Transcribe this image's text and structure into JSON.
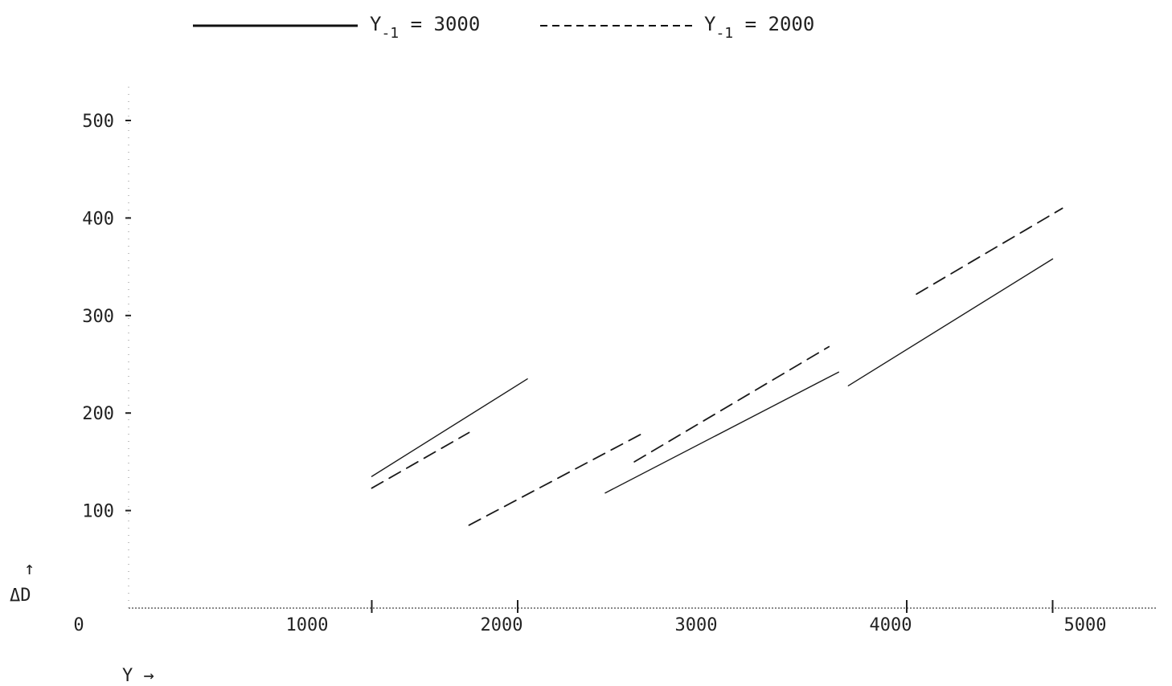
{
  "chart_data": {
    "type": "line",
    "title": "",
    "xlabel": "Y →",
    "ylabel": "↑ ΔD",
    "xlim": [
      0,
      5000
    ],
    "ylim": [
      0,
      500
    ],
    "x_ticks": [
      "0",
      "1000",
      "2000",
      "3000",
      "4000",
      "5000"
    ],
    "y_ticks": [
      "100",
      "200",
      "300",
      "400",
      "500"
    ],
    "grid": false,
    "legend_position": "top",
    "legend": [
      {
        "prefix": "Y",
        "sub": "-1",
        "suffix": " = 3000",
        "style": "solid"
      },
      {
        "prefix": "Y",
        "sub": "-1",
        "suffix": " = 2000",
        "style": "dashed"
      }
    ],
    "series": [
      {
        "name": "Y-1 = 3000",
        "style": "solid",
        "segments": [
          [
            [
              1250,
              135
            ],
            [
              2050,
              235
            ]
          ],
          [
            [
              2450,
              118
            ],
            [
              3650,
              242
            ]
          ],
          [
            [
              3700,
              228
            ],
            [
              4750,
              358
            ]
          ]
        ]
      },
      {
        "name": "Y-1 = 2000",
        "style": "dashed",
        "segments": [
          [
            [
              1250,
              123
            ],
            [
              1750,
              180
            ]
          ],
          [
            [
              1750,
              85
            ],
            [
              2650,
              180
            ]
          ],
          [
            [
              2600,
              150
            ],
            [
              3600,
              268
            ]
          ],
          [
            [
              4050,
              322
            ],
            [
              4800,
              410
            ]
          ]
        ]
      }
    ]
  }
}
